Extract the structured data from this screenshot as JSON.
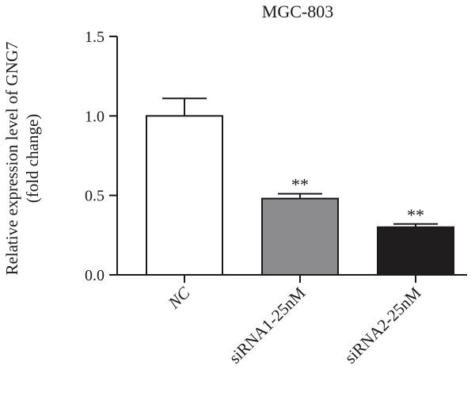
{
  "chart_data": {
    "type": "bar",
    "title": "MGC-803",
    "ylabel_lines": [
      "Relative expression level of GNG7",
      "(fold change)"
    ],
    "xlabel": "",
    "categories": [
      "NC",
      "siRNA1-25nM",
      "siRNA2-25nM"
    ],
    "category_styles": [
      "italic",
      "normal",
      "normal"
    ],
    "values": [
      1.0,
      0.48,
      0.3
    ],
    "errors": [
      0.11,
      0.03,
      0.02
    ],
    "significance": [
      "",
      "**",
      "**"
    ],
    "bar_colors": [
      "#ffffff",
      "#8c8c8e",
      "#1f1d1e"
    ],
    "ylim": [
      0,
      1.5
    ],
    "yticks": [
      0.0,
      0.5,
      1.0,
      1.5
    ],
    "ytick_labels": [
      "0.0",
      "0.5",
      "1.0",
      "1.5"
    ],
    "grid": false,
    "legend": "none"
  }
}
